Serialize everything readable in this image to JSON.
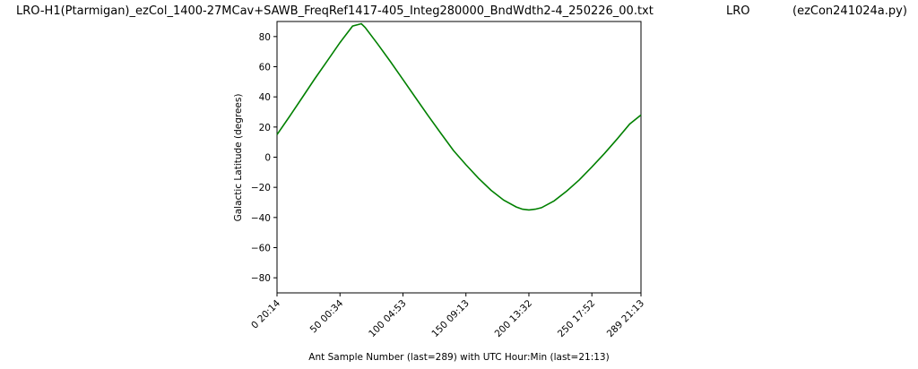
{
  "header": {
    "filename": "LRO-H1(Ptarmigan)_ezCol_1400-27MCav+SAWB_FreqRef1417-405_Integ280000_BndWdth2-4_250226_00.txt",
    "site": "LRO",
    "program": "(ezCon241024a.py)"
  },
  "chart_data": {
    "type": "line",
    "title": "",
    "xlabel": "Ant Sample Number (last=289) with UTC Hour:Min (last=21:13)",
    "ylabel": "Galactic Latitude (degrees)",
    "xlim": [
      0,
      289
    ],
    "ylim": [
      -90,
      90
    ],
    "grid": false,
    "line_color": "#008000",
    "x_ticks": [
      {
        "value": 0,
        "label": "0  20:14"
      },
      {
        "value": 50,
        "label": "50  00:34"
      },
      {
        "value": 100,
        "label": "100  04:53"
      },
      {
        "value": 150,
        "label": "150  09:13"
      },
      {
        "value": 200,
        "label": "200  13:32"
      },
      {
        "value": 250,
        "label": "250  17:52"
      },
      {
        "value": 289,
        "label": "289  21:13"
      }
    ],
    "y_ticks": [
      {
        "value": 80,
        "label": "80"
      },
      {
        "value": 60,
        "label": "60"
      },
      {
        "value": 40,
        "label": "40"
      },
      {
        "value": 20,
        "label": "20"
      },
      {
        "value": 0,
        "label": "0"
      },
      {
        "value": -20,
        "label": "−20"
      },
      {
        "value": -40,
        "label": "−40"
      },
      {
        "value": -60,
        "label": "−60"
      },
      {
        "value": -80,
        "label": "−80"
      }
    ],
    "series": [
      {
        "x": [
          0,
          10,
          20,
          30,
          40,
          50,
          60,
          67,
          70,
          80,
          90,
          100,
          110,
          120,
          130,
          140,
          150,
          160,
          170,
          180,
          190,
          195,
          200,
          205,
          210,
          220,
          230,
          240,
          250,
          260,
          270,
          280,
          289
        ],
        "y": [
          15,
          27,
          39.5,
          52,
          64,
          76,
          87,
          88.5,
          86,
          75,
          63.5,
          51.5,
          39.5,
          27.5,
          16,
          4.5,
          -5,
          -14,
          -22,
          -28.5,
          -33,
          -34.5,
          -35,
          -34.5,
          -33.5,
          -29,
          -22.5,
          -15,
          -6.5,
          2.5,
          12,
          22,
          28
        ]
      }
    ]
  }
}
